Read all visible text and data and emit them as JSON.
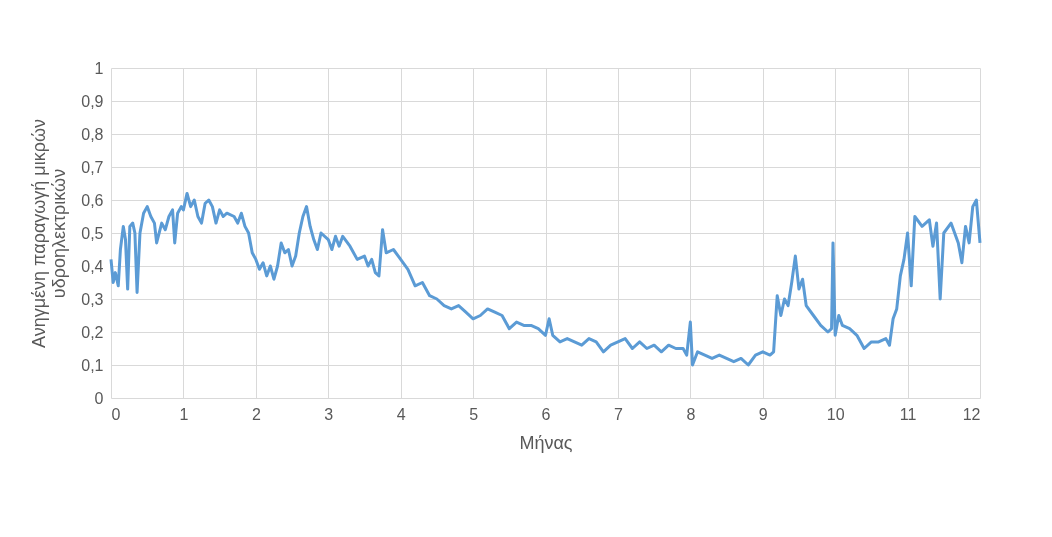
{
  "chart_data": {
    "type": "line",
    "xlabel": "Μήνας",
    "ylabel": "Ανηγμένη παραγωγή μικρών υδροηλεκτρικών",
    "x": [
      0,
      0.03,
      0.06,
      0.1,
      0.13,
      0.17,
      0.2,
      0.23,
      0.26,
      0.3,
      0.33,
      0.36,
      0.4,
      0.45,
      0.5,
      0.55,
      0.6,
      0.63,
      0.7,
      0.75,
      0.8,
      0.85,
      0.88,
      0.92,
      0.97,
      1.0,
      1.05,
      1.1,
      1.15,
      1.2,
      1.25,
      1.3,
      1.35,
      1.4,
      1.45,
      1.5,
      1.55,
      1.6,
      1.7,
      1.75,
      1.8,
      1.85,
      1.9,
      1.95,
      2.0,
      2.05,
      2.1,
      2.15,
      2.2,
      2.25,
      2.3,
      2.35,
      2.4,
      2.45,
      2.5,
      2.55,
      2.6,
      2.65,
      2.7,
      2.75,
      2.8,
      2.85,
      2.9,
      3.0,
      3.05,
      3.1,
      3.15,
      3.2,
      3.3,
      3.4,
      3.5,
      3.55,
      3.6,
      3.65,
      3.7,
      3.75,
      3.8,
      3.9,
      4.0,
      4.1,
      4.2,
      4.3,
      4.4,
      4.5,
      4.6,
      4.7,
      4.8,
      4.9,
      5.0,
      5.1,
      5.2,
      5.3,
      5.4,
      5.5,
      5.6,
      5.7,
      5.8,
      5.9,
      6.0,
      6.05,
      6.1,
      6.2,
      6.3,
      6.4,
      6.5,
      6.6,
      6.7,
      6.8,
      6.9,
      7.0,
      7.1,
      7.2,
      7.3,
      7.4,
      7.5,
      7.6,
      7.7,
      7.8,
      7.9,
      7.95,
      8.0,
      8.03,
      8.1,
      8.2,
      8.3,
      8.4,
      8.5,
      8.6,
      8.7,
      8.8,
      8.9,
      9.0,
      9.1,
      9.15,
      9.2,
      9.25,
      9.3,
      9.35,
      9.4,
      9.45,
      9.5,
      9.55,
      9.6,
      9.7,
      9.8,
      9.9,
      9.95,
      9.97,
      10.0,
      10.05,
      10.1,
      10.2,
      10.3,
      10.4,
      10.5,
      10.6,
      10.7,
      10.75,
      10.8,
      10.85,
      10.9,
      10.95,
      11.0,
      11.05,
      11.1,
      11.2,
      11.3,
      11.35,
      11.4,
      11.45,
      11.5,
      11.6,
      11.7,
      11.75,
      11.8,
      11.85,
      11.9,
      11.95,
      12.0
    ],
    "series": [
      {
        "color": "#5b9bd5",
        "values": [
          0.42,
          0.35,
          0.38,
          0.34,
          0.45,
          0.52,
          0.48,
          0.33,
          0.52,
          0.53,
          0.5,
          0.32,
          0.5,
          0.56,
          0.58,
          0.55,
          0.53,
          0.47,
          0.53,
          0.51,
          0.55,
          0.57,
          0.47,
          0.56,
          0.58,
          0.57,
          0.62,
          0.58,
          0.6,
          0.55,
          0.53,
          0.59,
          0.6,
          0.58,
          0.53,
          0.57,
          0.55,
          0.56,
          0.55,
          0.53,
          0.56,
          0.52,
          0.5,
          0.44,
          0.42,
          0.39,
          0.41,
          0.37,
          0.4,
          0.36,
          0.4,
          0.47,
          0.44,
          0.45,
          0.4,
          0.43,
          0.5,
          0.55,
          0.58,
          0.52,
          0.48,
          0.45,
          0.5,
          0.48,
          0.45,
          0.49,
          0.46,
          0.49,
          0.46,
          0.42,
          0.43,
          0.4,
          0.42,
          0.38,
          0.37,
          0.51,
          0.44,
          0.45,
          0.42,
          0.39,
          0.34,
          0.35,
          0.31,
          0.3,
          0.28,
          0.27,
          0.28,
          0.26,
          0.24,
          0.25,
          0.27,
          0.26,
          0.25,
          0.21,
          0.23,
          0.22,
          0.22,
          0.21,
          0.19,
          0.24,
          0.19,
          0.17,
          0.18,
          0.17,
          0.16,
          0.18,
          0.17,
          0.14,
          0.16,
          0.17,
          0.18,
          0.15,
          0.17,
          0.15,
          0.16,
          0.14,
          0.16,
          0.15,
          0.15,
          0.13,
          0.23,
          0.1,
          0.14,
          0.13,
          0.12,
          0.13,
          0.12,
          0.11,
          0.12,
          0.1,
          0.13,
          0.14,
          0.13,
          0.14,
          0.31,
          0.25,
          0.3,
          0.28,
          0.35,
          0.43,
          0.33,
          0.36,
          0.28,
          0.25,
          0.22,
          0.2,
          0.21,
          0.47,
          0.19,
          0.25,
          0.22,
          0.21,
          0.19,
          0.15,
          0.17,
          0.17,
          0.18,
          0.16,
          0.24,
          0.27,
          0.37,
          0.42,
          0.5,
          0.34,
          0.55,
          0.52,
          0.54,
          0.46,
          0.53,
          0.3,
          0.5,
          0.53,
          0.47,
          0.41,
          0.52,
          0.47,
          0.58,
          0.6,
          0.47
        ]
      }
    ],
    "xlim": [
      0,
      12
    ],
    "xticks": [
      0,
      1,
      2,
      3,
      4,
      5,
      6,
      7,
      8,
      9,
      10,
      11,
      12
    ],
    "ylim": [
      0,
      1
    ],
    "yticks": [
      0,
      {
        "value": 0.1,
        "label": "0,1"
      },
      {
        "value": 0.2,
        "label": "0,2"
      },
      {
        "value": 0.3,
        "label": "0,3"
      },
      {
        "value": 0.4,
        "label": "0,4"
      },
      {
        "value": 0.5,
        "label": "0,5"
      },
      {
        "value": 0.6,
        "label": "0,6"
      },
      {
        "value": 0.7,
        "label": "0,7"
      },
      {
        "value": 0.8,
        "label": "0,8"
      },
      {
        "value": 0.9,
        "label": "0,9"
      },
      1
    ],
    "grid": true,
    "marker": "none",
    "line_style": "solid"
  }
}
